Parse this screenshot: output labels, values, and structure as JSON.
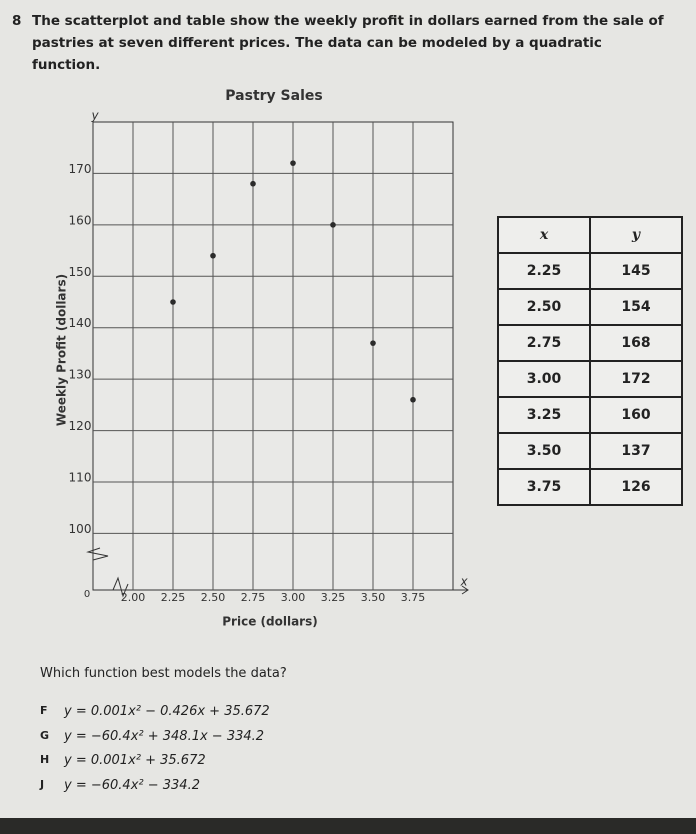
{
  "question": {
    "number": "8",
    "text": "The scatterplot and table show the weekly profit in dollars earned from the sale of pastries at seven different prices. The data can be modeled by a quadratic function."
  },
  "chart_data": {
    "type": "scatter",
    "title": "Pastry Sales",
    "x_label": "Price (dollars)",
    "y_label": "Weekly Profit (dollars)",
    "x_axis_letter": "x",
    "y_axis_letter": "y",
    "origin_label": "0",
    "x": [
      2.25,
      2.5,
      2.75,
      3.0,
      3.25,
      3.5,
      3.75
    ],
    "values": [
      145,
      154,
      168,
      172,
      160,
      137,
      126
    ],
    "color": "#2b2b2b",
    "xlim": [
      1.75,
      4.0
    ],
    "ylim": [
      89,
      180
    ],
    "xticks": [
      {
        "value": 2,
        "label": "2.00"
      },
      2.25,
      {
        "value": 2.5,
        "label": "2.50"
      },
      2.75,
      {
        "value": 3,
        "label": "3.00"
      },
      3.25,
      {
        "value": 3.5,
        "label": "3.50"
      },
      3.75
    ],
    "yticks": [
      100,
      110,
      120,
      130,
      140,
      150,
      160,
      170
    ],
    "grid": true
  },
  "table": {
    "header": [
      "x",
      "y"
    ],
    "rows": [
      [
        "2.25",
        "145"
      ],
      [
        "2.50",
        "154"
      ],
      [
        "2.75",
        "168"
      ],
      [
        "3.00",
        "172"
      ],
      [
        "3.25",
        "160"
      ],
      [
        "3.50",
        "137"
      ],
      [
        "3.75",
        "126"
      ]
    ]
  },
  "prompt": "Which function best models the data?",
  "options": [
    {
      "letter": "F",
      "equation": "y = 0.001x² − 0.426x + 35.672"
    },
    {
      "letter": "G",
      "equation": "y = −60.4x² + 348.1x − 334.2"
    },
    {
      "letter": "H",
      "equation": "y = 0.001x² + 35.672"
    },
    {
      "letter": "J",
      "equation": "y = −60.4x² − 334.2"
    }
  ]
}
